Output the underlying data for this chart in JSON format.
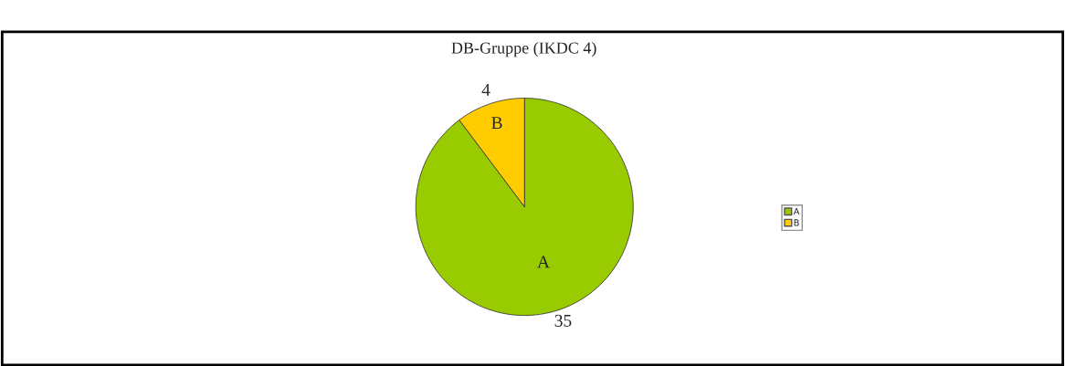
{
  "chart_data": {
    "type": "pie",
    "title": "DB-Gruppe (IKDC 4)",
    "categories": [
      "A",
      "B"
    ],
    "values": [
      35,
      4
    ],
    "colors": [
      "#99cc00",
      "#ffcc00"
    ],
    "data_labels": true,
    "legend": "right"
  }
}
